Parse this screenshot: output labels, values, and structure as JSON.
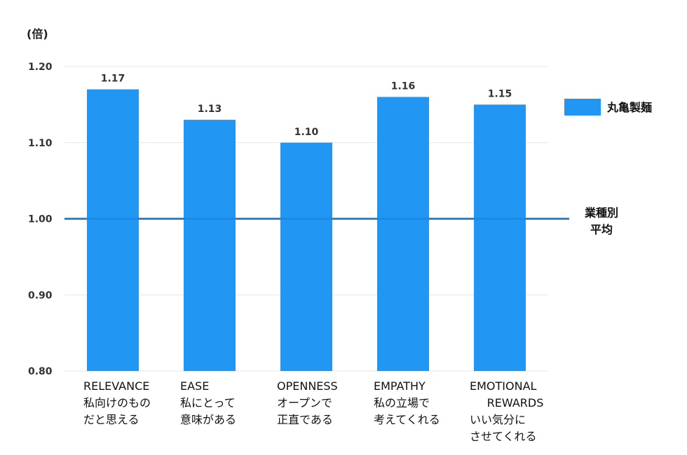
{
  "chart_data": {
    "type": "bar",
    "y_unit": "(倍)",
    "ylim": [
      0.8,
      1.2
    ],
    "y_ticks": [
      "0.80",
      "0.90",
      "1.00",
      "1.10",
      "1.20"
    ],
    "grid": true,
    "categories": [
      [
        "RELEVANCE",
        "私向けのもの",
        "だと思える"
      ],
      [
        "EASE",
        "私にとって",
        "意味がある"
      ],
      [
        "OPENNESS",
        "オープンで",
        "正直である"
      ],
      [
        "EMPATHY",
        "私の立場で",
        "考えてくれる"
      ],
      [
        "EMOTIONAL",
        "REWARDS",
        "いい気分に",
        "させてくれる"
      ]
    ],
    "series": [
      {
        "name": "丸亀製麺",
        "values": [
          1.17,
          1.13,
          1.1,
          1.16,
          1.15
        ],
        "labels": [
          "1.17",
          "1.13",
          "1.10",
          "1.16",
          "1.15"
        ]
      }
    ],
    "reference_line": {
      "value": 1.0,
      "label_lines": [
        "業種別",
        "平均"
      ]
    },
    "legend_position": "right",
    "colors": {
      "bar": "#2196F3",
      "reference": "#1E88E5",
      "grid": "#E6E6E6"
    }
  }
}
